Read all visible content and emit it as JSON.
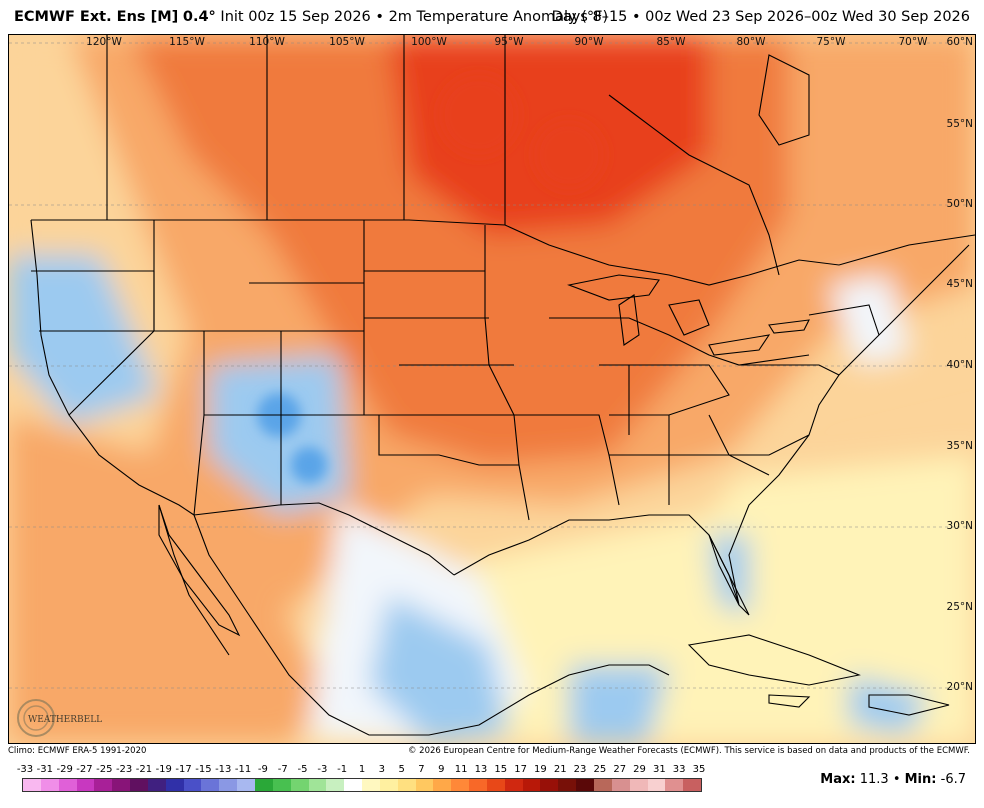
{
  "header": {
    "model": "ECMWF Ext.  Ens [M]",
    "resolution": "0.4°",
    "init": "Init 00z 15 Sep 2026",
    "variable": "2m Temperature Anomaly (°F)",
    "period": "Days 8–15 • 00z Wed 23 Sep 2026–00z Wed 30 Sep 2026"
  },
  "map": {
    "lon_labels": [
      "120°W",
      "115°W",
      "110°W",
      "105°W",
      "100°W",
      "95°W",
      "90°W",
      "85°W",
      "80°W",
      "75°W",
      "70°W"
    ],
    "lat_labels": [
      "60°N",
      "55°N",
      "50°N",
      "45°N",
      "40°N",
      "35°N",
      "30°N",
      "25°N",
      "20°N"
    ],
    "colors": {
      "strong_warm": "#e8401c",
      "warm": "#f07a3c",
      "mild_warm": "#f8a868",
      "slight_warm": "#fcd49a",
      "neutral_warm": "#fff3b8",
      "neutral": "#f2f6fb",
      "cool": "#9ccaf0",
      "cold": "#5aa4e8"
    }
  },
  "footer": {
    "climo": "Climo: ECMWF ERA-5 1991-2020",
    "copyright": "© 2026 European Centre for Medium-Range Weather Forecasts (ECMWF). This service is based on data and products of the ECMWF.",
    "logo_text": "WEATHERBELL"
  },
  "legend": {
    "ticks": [
      "-33",
      "-31",
      "-29",
      "-27",
      "-25",
      "-23",
      "-21",
      "-19",
      "-17",
      "-15",
      "-13",
      "-11",
      "-9",
      "-7",
      "-5",
      "-3",
      "-1",
      "1",
      "3",
      "5",
      "7",
      "9",
      "11",
      "13",
      "15",
      "17",
      "19",
      "21",
      "23",
      "25",
      "27",
      "29",
      "31",
      "33",
      "35"
    ],
    "colors": [
      "#f9b8f0",
      "#f08ee8",
      "#e060d8",
      "#c838c0",
      "#a82098",
      "#881478",
      "#601060",
      "#402080",
      "#3030a8",
      "#4a50c8",
      "#6a74d8",
      "#8a98e4",
      "#a8b8f0",
      "#2aa838",
      "#48c050",
      "#74d470",
      "#a0e498",
      "#c8f0c0",
      "#ffffff",
      "#fff8c0",
      "#fff0a0",
      "#ffe080",
      "#ffc860",
      "#ffa848",
      "#ff8838",
      "#f86828",
      "#e84818",
      "#d02810",
      "#b81808",
      "#981008",
      "#781008",
      "#5a0808",
      "#b8685a",
      "#d89090",
      "#f0b8b8",
      "#f8d0d0",
      "#e09090",
      "#c86060"
    ],
    "max_label": "Max:",
    "max_value": "11.3",
    "sep": "•",
    "min_label": "Min:",
    "min_value": "-6.7"
  }
}
